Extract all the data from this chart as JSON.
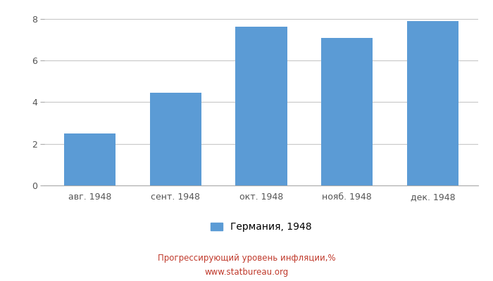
{
  "categories": [
    "авг. 1948",
    "сент. 1948",
    "окт. 1948",
    "нояб. 1948",
    "дек. 1948"
  ],
  "values": [
    2.5,
    4.45,
    7.63,
    7.1,
    7.88
  ],
  "bar_color": "#5b9bd5",
  "ylim": [
    0,
    8.5
  ],
  "yticks": [
    0,
    2,
    4,
    6,
    8
  ],
  "legend_label": "Германия, 1948",
  "title_line1": "Прогрессирующий уровень инфляции,%",
  "title_line2": "www.statbureau.org",
  "title_color": "#c0392b",
  "background_color": "#ffffff",
  "grid_color": "#c8c8c8",
  "bar_width": 0.6
}
